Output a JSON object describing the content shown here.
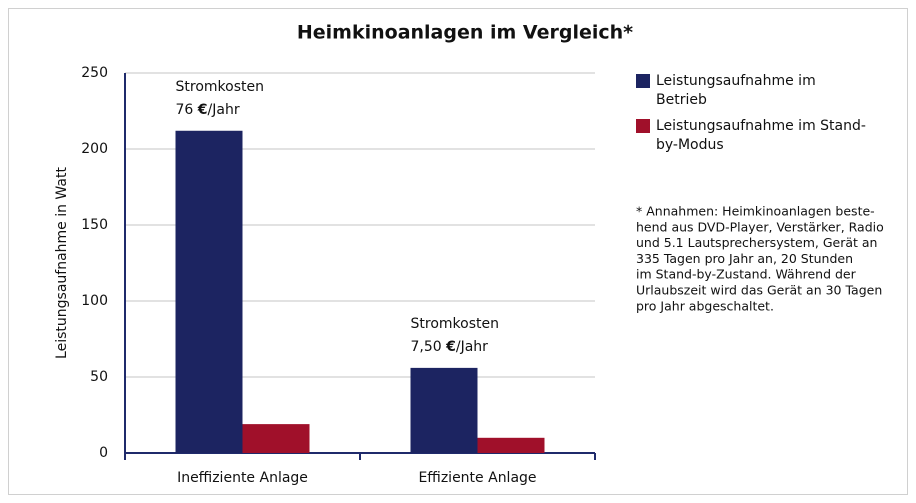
{
  "chart_data": {
    "type": "bar",
    "title": "Heimkinoanlagen im Vergleich*",
    "y_label": "Leistungsaufnahme in Watt",
    "categories": [
      "Ineffiziente Anlage",
      "Effiziente Anlage"
    ],
    "series": [
      {
        "name": "Leistungsaufnahme im Betrieb",
        "color": "#1c2461",
        "values": [
          212,
          56
        ]
      },
      {
        "name": "Leistungsaufnahme im Stand-by-Modus",
        "color": "#a0102a",
        "values": [
          19,
          10
        ]
      }
    ],
    "ylim": [
      0,
      250
    ],
    "yticks": [
      0,
      50,
      100,
      150,
      200,
      250
    ],
    "grid": true,
    "annotations": [
      {
        "category": 0,
        "lines": [
          [
            "Stromkosten"
          ],
          [
            "76 ",
            "€",
            "/Jahr"
          ]
        ]
      },
      {
        "category": 1,
        "lines": [
          [
            "Stromkosten"
          ],
          [
            "7,50 ",
            "€",
            "/Jahr"
          ]
        ]
      }
    ],
    "footnote": [
      "* Annahmen: Heimkinoanlagen beste-",
      "hend aus DVD-Player, Verstärker, Radio",
      "und 5.1 Lautsprechersystem, Gerät an",
      "335 Tagen pro Jahr an, 20 Stunden",
      "im Stand-by-Zustand.  Während der",
      "Urlaubszeit wird das Gerät an 30 Tagen",
      "pro Jahr abgeschaltet."
    ]
  }
}
